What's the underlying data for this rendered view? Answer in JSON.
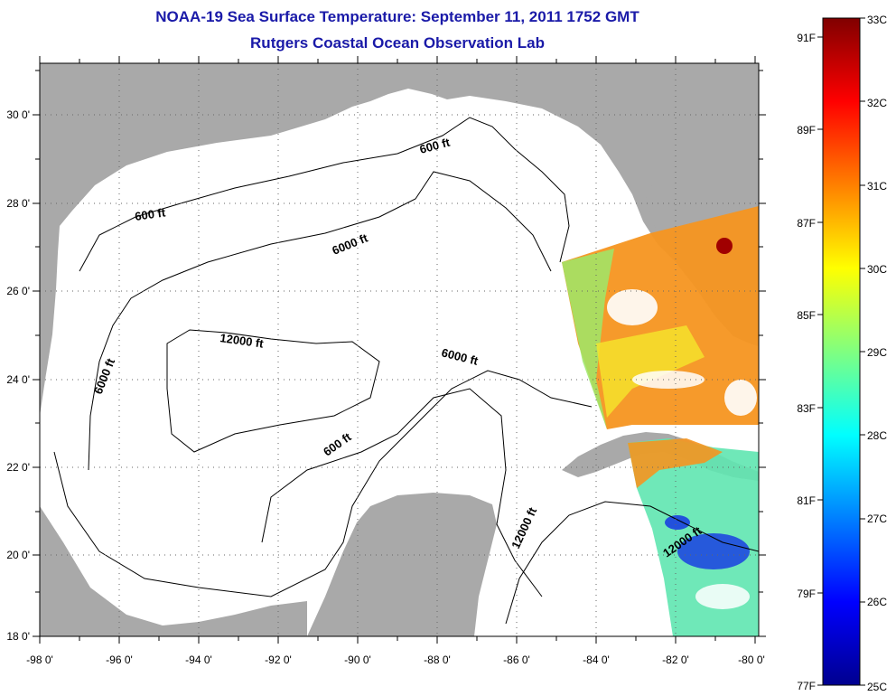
{
  "header": {
    "title": "NOAA-19 Sea Surface Temperature:  September 11, 2011 1752 GMT",
    "subtitle": "Rutgers Coastal Ocean Observation Lab"
  },
  "map": {
    "region": "Gulf of Mexico",
    "lon_range": [
      -98,
      -80
    ],
    "lat_range": [
      18,
      31
    ],
    "grid": "dotted",
    "lon_ticks": [
      "-98 0'",
      "-96 0'",
      "-94 0'",
      "-92 0'",
      "-90 0'",
      "-88 0'",
      "-86 0'",
      "-84 0'",
      "-82 0'",
      "-80 0'"
    ],
    "lat_ticks": [
      "18 0'",
      "20 0'",
      "22 0'",
      "24 0'",
      "26 0'",
      "28 0'",
      "30 0'"
    ],
    "colors": {
      "land": "#a9a9a9",
      "water_nodata": "#ffffff",
      "contour": "#000000",
      "title": "#1a1aa8"
    },
    "contour_labels": [
      "600 ft",
      "600 ft",
      "6000 ft",
      "12000 ft",
      "6000 ft",
      "6000 ft",
      "600 ft",
      "12000 ft",
      "12000 ft"
    ]
  },
  "colorbar": {
    "celsius_labels": [
      "33C",
      "32C",
      "31C",
      "30C",
      "29C",
      "28C",
      "27C",
      "26C",
      "25C"
    ],
    "fahrenheit_labels": [
      "91F",
      "89F",
      "87F",
      "85F",
      "83F",
      "81F",
      "79F",
      "77F"
    ],
    "range_c": [
      25,
      33
    ],
    "colormap": "jet",
    "colors": [
      "#00008f",
      "#0000ff",
      "#0080ff",
      "#00ffff",
      "#80ff80",
      "#ffff00",
      "#ff8000",
      "#ff0000",
      "#800000"
    ]
  }
}
